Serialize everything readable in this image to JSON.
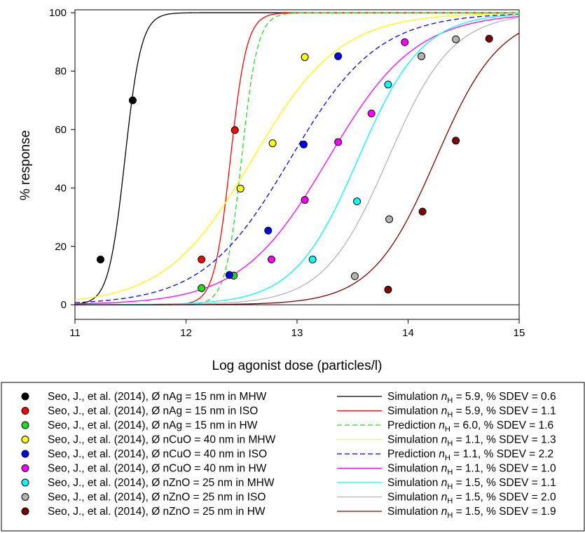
{
  "chart_data": {
    "type": "scatter",
    "xlabel": "Log agonist dose (particles/l)",
    "ylabel": "% response",
    "xlim": [
      11,
      15
    ],
    "ylim": [
      -5,
      101
    ],
    "x_ticks": [
      11,
      12,
      13,
      14,
      15
    ],
    "y_ticks": [
      0,
      20,
      40,
      60,
      80,
      100
    ],
    "grid": false,
    "legend_placement": "bottom",
    "scatter_series": [
      {
        "name": "Seo, J., et al. (2014), Ø nAg = 15 nm in MHW",
        "color": "#000000",
        "x": [
          11.23,
          11.52
        ],
        "y": [
          15.5,
          70
        ]
      },
      {
        "name": "Seo, J., et al. (2014), Ø nAg = 15 nm in ISO",
        "color": "#ff0000",
        "x": [
          12.14,
          12.44
        ],
        "y": [
          15.5,
          59.8
        ]
      },
      {
        "name": "Seo, J., et al. (2014), Ø nAg = 15 nm in HW",
        "color": "#22dd22",
        "x": [
          12.14,
          12.43
        ],
        "y": [
          5.7,
          10
        ]
      },
      {
        "name": "Seo, J., et al. (2014), Ø nCuO = 40 nm in MHW",
        "color": "#ffff00",
        "x": [
          12.49,
          12.78,
          13.07
        ],
        "y": [
          39.8,
          55.3,
          84.8
        ]
      },
      {
        "name": "Seo, J., et al. (2014), Ø nCuO = 40 nm in ISO",
        "color": "#0000ff",
        "x": [
          12.39,
          12.74,
          13.06,
          13.37
        ],
        "y": [
          10.2,
          25.4,
          54.9,
          85.1
        ]
      },
      {
        "name": "Seo, J., et al. (2014), Ø nCuO = 40 nm in HW",
        "color": "#ff00ff",
        "x": [
          12.77,
          13.07,
          13.37,
          13.67,
          13.97
        ],
        "y": [
          15.5,
          35.9,
          55.7,
          65.5,
          89.9
        ]
      },
      {
        "name": "Seo, J., et al. (2014), Ø nZnO = 25 nm in MHW",
        "color": "#00ffff",
        "x": [
          13.14,
          13.54,
          13.82
        ],
        "y": [
          15.5,
          35.4,
          75.4
        ]
      },
      {
        "name": "Seo, J., et al. (2014), Ø nZnO = 25 nm in ISO",
        "color": "#b4b4b4",
        "x": [
          13.52,
          13.83,
          14.12,
          14.43
        ],
        "y": [
          9.8,
          29.3,
          85.1,
          90.9
        ]
      },
      {
        "name": "Seo, J., et al. (2014), Ø nZnO = 25 nm in HW",
        "color": "#800000",
        "x": [
          13.82,
          14.13,
          14.43,
          14.73
        ],
        "y": [
          5.2,
          31.9,
          56.2,
          91.1
        ]
      }
    ],
    "line_series": [
      {
        "name_prefix": "Simulation",
        "nH": "5.9",
        "sdev": "0.6",
        "color": "#000000",
        "dash": false,
        "ec50": 11.45
      },
      {
        "name_prefix": "Simulation",
        "nH": "5.9",
        "sdev": "1.1",
        "color": "#ff0000",
        "dash": false,
        "ec50": 12.4
      },
      {
        "name_prefix": "Prediction",
        "nH": "6.0",
        "sdev": "1.6",
        "color": "#22dd22",
        "dash": true,
        "ec50": 12.5
      },
      {
        "name_prefix": "Simulation",
        "nH": "1.1",
        "sdev": "1.3",
        "color": "#ffff00",
        "dash": false,
        "ec50": 12.6
      },
      {
        "name_prefix": "Prediction",
        "nH": "1.1",
        "sdev": "2.2",
        "color": "#0000ff",
        "dash": true,
        "ec50": 12.94
      },
      {
        "name_prefix": "Simulation",
        "nH": "1.1",
        "sdev": "1.0",
        "color": "#ff00ff",
        "dash": false,
        "ec50": 13.28
      },
      {
        "name_prefix": "Simulation",
        "nH": "1.5",
        "sdev": "1.1",
        "color": "#00ffff",
        "dash": false,
        "ec50": 13.55
      },
      {
        "name_prefix": "Simulation",
        "nH": "1.5",
        "sdev": "2.0",
        "color": "#b4b4b4",
        "dash": false,
        "ec50": 13.82
      },
      {
        "name_prefix": "Simulation",
        "nH": "1.5",
        "sdev": "1.9",
        "color": "#800000",
        "dash": false,
        "ec50": 14.25
      }
    ],
    "legend_labels": {
      "nh_symbol": "n",
      "nh_subscript": "H",
      "mid": " = ",
      "sdev_label": ", % SDEV = "
    }
  }
}
